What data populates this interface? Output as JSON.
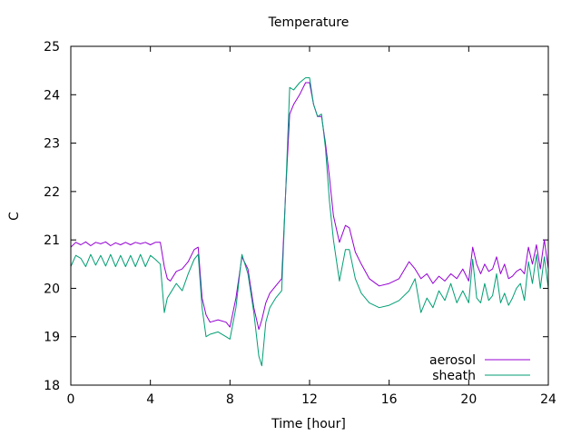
{
  "chart_data": {
    "type": "line",
    "title": "Temperature",
    "xlabel": "Time [hour]",
    "ylabel": "C",
    "xlim": [
      0,
      24
    ],
    "ylim": [
      18,
      25
    ],
    "x_ticks": [
      0,
      4,
      8,
      12,
      16,
      20,
      24
    ],
    "y_ticks": [
      18,
      19,
      20,
      21,
      22,
      23,
      24,
      25
    ],
    "grid": false,
    "legend_position": "bottom-right",
    "series": [
      {
        "name": "aerosol",
        "color": "#9400d3",
        "x": [
          0,
          0.25,
          0.5,
          0.75,
          1.0,
          1.25,
          1.5,
          1.75,
          2.0,
          2.25,
          2.5,
          2.75,
          3.0,
          3.25,
          3.5,
          3.75,
          4.0,
          4.25,
          4.5,
          4.7,
          4.85,
          5.0,
          5.3,
          5.6,
          5.9,
          6.2,
          6.4,
          6.6,
          6.8,
          7.0,
          7.4,
          7.8,
          8.0,
          8.3,
          8.6,
          8.9,
          9.2,
          9.45,
          9.6,
          9.8,
          10.0,
          10.3,
          10.6,
          10.8,
          11.0,
          11.2,
          11.5,
          11.8,
          12.0,
          12.2,
          12.4,
          12.6,
          12.8,
          13.0,
          13.2,
          13.5,
          13.8,
          14.0,
          14.3,
          14.6,
          15.0,
          15.5,
          16.0,
          16.5,
          17.0,
          17.3,
          17.6,
          17.9,
          18.2,
          18.5,
          18.8,
          19.1,
          19.4,
          19.7,
          20.0,
          20.2,
          20.4,
          20.6,
          20.8,
          21.0,
          21.2,
          21.4,
          21.6,
          21.8,
          22.0,
          22.2,
          22.4,
          22.6,
          22.8,
          23.0,
          23.2,
          23.4,
          23.6,
          23.8,
          24.0
        ],
        "y": [
          20.85,
          20.95,
          20.9,
          20.96,
          20.88,
          20.95,
          20.92,
          20.96,
          20.88,
          20.94,
          20.9,
          20.95,
          20.9,
          20.95,
          20.92,
          20.95,
          20.9,
          20.95,
          20.95,
          20.45,
          20.2,
          20.15,
          20.35,
          20.4,
          20.55,
          20.8,
          20.85,
          19.8,
          19.45,
          19.3,
          19.35,
          19.3,
          19.2,
          19.8,
          20.65,
          20.4,
          19.6,
          19.15,
          19.35,
          19.7,
          19.9,
          20.05,
          20.2,
          22.0,
          23.6,
          23.8,
          24.0,
          24.25,
          24.25,
          23.8,
          23.55,
          23.55,
          23.0,
          22.3,
          21.5,
          20.95,
          21.3,
          21.25,
          20.75,
          20.5,
          20.2,
          20.05,
          20.1,
          20.2,
          20.55,
          20.4,
          20.2,
          20.3,
          20.1,
          20.25,
          20.15,
          20.3,
          20.2,
          20.4,
          20.15,
          20.85,
          20.5,
          20.3,
          20.5,
          20.35,
          20.4,
          20.65,
          20.3,
          20.5,
          20.2,
          20.25,
          20.35,
          20.4,
          20.3,
          20.85,
          20.5,
          20.9,
          20.4,
          21.0,
          20.4
        ]
      },
      {
        "name": "sheath",
        "color": "#009e73",
        "x": [
          0,
          0.25,
          0.5,
          0.75,
          1.0,
          1.25,
          1.5,
          1.75,
          2.0,
          2.25,
          2.5,
          2.75,
          3.0,
          3.25,
          3.5,
          3.75,
          4.0,
          4.25,
          4.5,
          4.7,
          4.85,
          5.0,
          5.3,
          5.6,
          5.9,
          6.2,
          6.4,
          6.6,
          6.8,
          7.0,
          7.4,
          7.8,
          8.0,
          8.3,
          8.6,
          8.9,
          9.2,
          9.45,
          9.6,
          9.8,
          10.0,
          10.3,
          10.6,
          10.8,
          11.0,
          11.2,
          11.5,
          11.8,
          12.0,
          12.2,
          12.4,
          12.6,
          12.8,
          13.0,
          13.2,
          13.5,
          13.8,
          14.0,
          14.3,
          14.6,
          15.0,
          15.5,
          16.0,
          16.5,
          17.0,
          17.3,
          17.6,
          17.9,
          18.2,
          18.5,
          18.8,
          19.1,
          19.4,
          19.7,
          20.0,
          20.2,
          20.4,
          20.6,
          20.8,
          21.0,
          21.2,
          21.4,
          21.6,
          21.8,
          22.0,
          22.2,
          22.4,
          22.6,
          22.8,
          23.0,
          23.2,
          23.4,
          23.6,
          23.8,
          24.0
        ],
        "y": [
          20.45,
          20.68,
          20.62,
          20.45,
          20.7,
          20.48,
          20.68,
          20.46,
          20.7,
          20.45,
          20.68,
          20.45,
          20.68,
          20.45,
          20.7,
          20.45,
          20.68,
          20.6,
          20.5,
          19.5,
          19.8,
          19.9,
          20.1,
          19.95,
          20.3,
          20.6,
          20.7,
          19.6,
          19.0,
          19.05,
          19.1,
          19.0,
          18.95,
          19.6,
          20.7,
          20.3,
          19.5,
          18.6,
          18.4,
          19.3,
          19.6,
          19.8,
          19.95,
          22.0,
          24.15,
          24.1,
          24.25,
          24.35,
          24.35,
          23.8,
          23.55,
          23.6,
          22.9,
          21.8,
          21.0,
          20.15,
          20.8,
          20.8,
          20.2,
          19.9,
          19.7,
          19.6,
          19.65,
          19.75,
          19.95,
          20.2,
          19.5,
          19.8,
          19.6,
          19.95,
          19.75,
          20.1,
          19.7,
          19.95,
          19.7,
          20.6,
          19.8,
          19.7,
          20.1,
          19.75,
          19.85,
          20.3,
          19.7,
          19.9,
          19.65,
          19.8,
          20.0,
          20.1,
          19.75,
          20.55,
          20.1,
          20.7,
          20.0,
          20.65,
          20.0
        ]
      }
    ]
  }
}
